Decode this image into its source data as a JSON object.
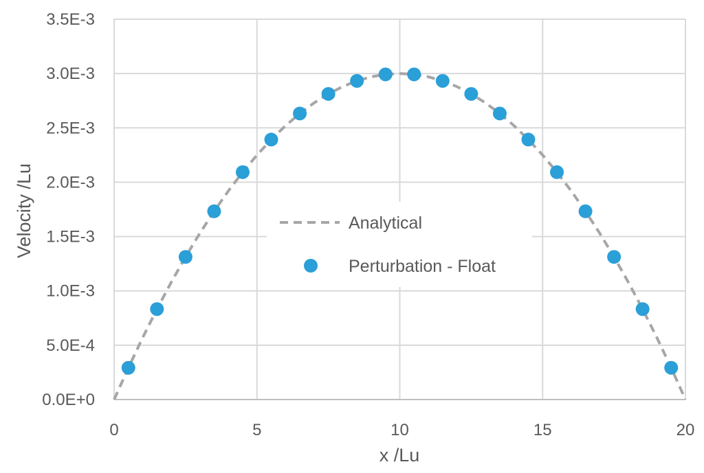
{
  "chart_data": {
    "type": "scatter",
    "title": "",
    "xlabel": "x /Lu",
    "ylabel": "Velocity /Lu",
    "xlim": [
      0,
      20
    ],
    "ylim": [
      0,
      0.0035
    ],
    "x_ticks": [
      0,
      5,
      10,
      15,
      20
    ],
    "x_tick_labels": [
      "0",
      "5",
      "10",
      "15",
      "20"
    ],
    "y_ticks": [
      0,
      0.0005,
      0.001,
      0.0015,
      0.002,
      0.0025,
      0.003,
      0.0035
    ],
    "y_tick_labels": [
      "0.0E+0",
      "5.0E-4",
      "1.0E-3",
      "1.5E-3",
      "2.0E-3",
      "2.5E-3",
      "3.0E-3",
      "3.5E-3"
    ],
    "grid": true,
    "legend_position": "center",
    "series": [
      {
        "name": "Analytical",
        "kind": "dashed-line",
        "color": "#a6a6a6",
        "x": [
          0,
          0.5,
          1,
          1.5,
          2,
          2.5,
          3,
          3.5,
          4,
          4.5,
          5,
          5.5,
          6,
          6.5,
          7,
          7.5,
          8,
          8.5,
          9,
          9.5,
          10,
          10.5,
          11,
          11.5,
          12,
          12.5,
          13,
          13.5,
          14,
          14.5,
          15,
          15.5,
          16,
          16.5,
          17,
          17.5,
          18,
          18.5,
          19,
          19.5,
          20
        ],
        "y": [
          0,
          0.0002925,
          0.00057,
          0.0008325,
          0.00108,
          0.0013125,
          0.00153,
          0.0017325,
          0.00192,
          0.0020925,
          0.00225,
          0.0023925,
          0.00252,
          0.0026325,
          0.00273,
          0.0028125,
          0.00288,
          0.0029325,
          0.00297,
          0.0029925,
          0.003,
          0.0029925,
          0.00297,
          0.0029325,
          0.00288,
          0.0028125,
          0.00273,
          0.0026325,
          0.00252,
          0.0023925,
          0.00225,
          0.0020925,
          0.00192,
          0.0017325,
          0.00153,
          0.0013125,
          0.00108,
          0.0008325,
          0.00057,
          0.0002925,
          0
        ]
      },
      {
        "name": "Perturbation - Float",
        "kind": "markers",
        "color": "#2a9fd8",
        "x": [
          0.5,
          1.5,
          2.5,
          3.5,
          4.5,
          5.5,
          6.5,
          7.5,
          8.5,
          9.5,
          10.5,
          11.5,
          12.5,
          13.5,
          14.5,
          15.5,
          16.5,
          17.5,
          18.5,
          19.5
        ],
        "y": [
          0.0002925,
          0.0008325,
          0.0013125,
          0.0017325,
          0.0020925,
          0.0023925,
          0.0026325,
          0.0028125,
          0.0029325,
          0.0029925,
          0.0029925,
          0.0029325,
          0.0028125,
          0.0026325,
          0.0023925,
          0.0020925,
          0.0017325,
          0.0013125,
          0.0008325,
          0.0002925
        ]
      }
    ]
  }
}
